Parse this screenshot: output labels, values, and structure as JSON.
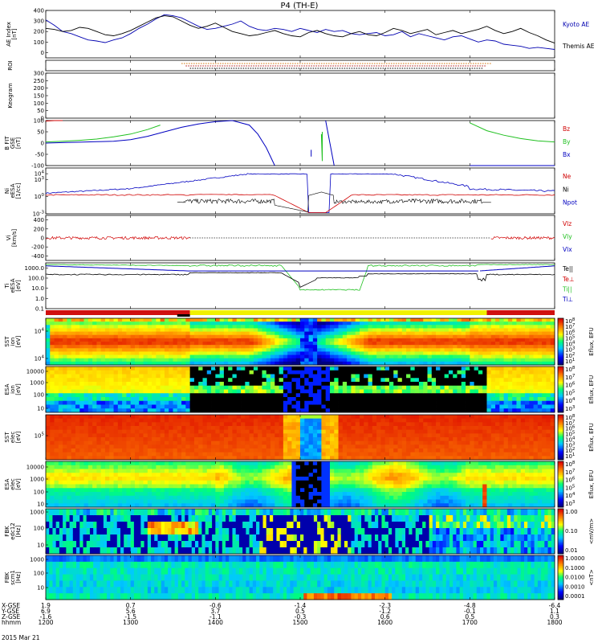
{
  "title": "P4 (TH-E)",
  "date_label": "2015 Mar 21",
  "chart_data": {
    "type": "line",
    "x_range": [
      1200,
      1800
    ],
    "x_ticks": [
      {
        "hhmm": "1200",
        "x_gse": "1.9",
        "y_gse": "6.9",
        "z_gse": "-1.6"
      },
      {
        "hhmm": "1300",
        "x_gse": "0.7",
        "y_gse": "5.6",
        "z_gse": "-1.5"
      },
      {
        "hhmm": "1400",
        "x_gse": "-0.6",
        "y_gse": "3.7",
        "z_gse": "-1.1"
      },
      {
        "hhmm": "1500",
        "x_gse": "-1.4",
        "y_gse": "0.5",
        "z_gse": "-0.3"
      },
      {
        "hhmm": "1600",
        "x_gse": "-2.3",
        "y_gse": "-1.2",
        "z_gse": "0.6"
      },
      {
        "hhmm": "1700",
        "x_gse": "-4.8",
        "y_gse": "-0.1",
        "z_gse": "0.5"
      },
      {
        "hhmm": "1800",
        "x_gse": "-6.4",
        "y_gse": "1.1",
        "z_gse": "0.3"
      }
    ],
    "row_labels": [
      "X-GSE",
      "Y-GSE",
      "Z-GSE",
      "hhmm"
    ],
    "panels": [
      {
        "id": "ae",
        "ylabel": [
          "AE Index",
          "[nT]"
        ],
        "ylim": [
          -50,
          400
        ],
        "ytick_labels": [
          "400",
          "300",
          "200",
          "100",
          "0"
        ],
        "series": [
          {
            "name": "Kyoto AE",
            "color": "#0000b0",
            "x": [
              1200,
              1210,
              1220,
              1230,
              1240,
              1250,
              1260,
              1270,
              1280,
              1290,
              1300,
              1310,
              1320,
              1330,
              1340,
              1350,
              1360,
              1370,
              1380,
              1390,
              1400,
              1410,
              1420,
              1430,
              1440,
              1450,
              1460,
              1470,
              1480,
              1490,
              1500,
              1510,
              1520,
              1530,
              1540,
              1550,
              1560,
              1570,
              1580,
              1590,
              1600,
              1610,
              1620,
              1630,
              1640,
              1650,
              1660,
              1670,
              1680,
              1690,
              1700,
              1710,
              1720,
              1730,
              1740,
              1750,
              1760,
              1770,
              1780,
              1790,
              1800
            ],
            "y": [
              310,
              260,
              200,
              180,
              150,
              120,
              110,
              95,
              120,
              140,
              180,
              230,
              270,
              320,
              360,
              350,
              330,
              290,
              250,
              220,
              230,
              250,
              270,
              300,
              250,
              220,
              210,
              230,
              220,
              200,
              230,
              210,
              190,
              220,
              200,
              210,
              180,
              170,
              180,
              190,
              160,
              170,
              200,
              150,
              180,
              160,
              140,
              120,
              150,
              160,
              130,
              100,
              120,
              110,
              80,
              70,
              60,
              40,
              50,
              40,
              30
            ]
          },
          {
            "name": "Themis AE",
            "color": "#000000",
            "x": [
              1200,
              1210,
              1220,
              1230,
              1240,
              1250,
              1260,
              1270,
              1280,
              1290,
              1300,
              1310,
              1320,
              1330,
              1340,
              1350,
              1360,
              1370,
              1380,
              1390,
              1400,
              1410,
              1420,
              1430,
              1440,
              1450,
              1460,
              1470,
              1480,
              1490,
              1500,
              1510,
              1520,
              1530,
              1540,
              1550,
              1560,
              1570,
              1580,
              1590,
              1600,
              1610,
              1620,
              1630,
              1640,
              1650,
              1660,
              1670,
              1680,
              1690,
              1700,
              1710,
              1720,
              1730,
              1740,
              1750,
              1760,
              1770,
              1780,
              1790,
              1800
            ],
            "y": [
              230,
              220,
              200,
              210,
              240,
              230,
              200,
              170,
              160,
              180,
              210,
              250,
              290,
              330,
              350,
              340,
              300,
              260,
              230,
              250,
              280,
              240,
              200,
              180,
              160,
              170,
              190,
              210,
              180,
              160,
              150,
              190,
              210,
              180,
              160,
              150,
              180,
              200,
              170,
              160,
              190,
              230,
              210,
              180,
              200,
              220,
              170,
              190,
              210,
              180,
              200,
              220,
              250,
              210,
              180,
              200,
              230,
              190,
              160,
              120,
              90
            ]
          }
        ]
      },
      {
        "id": "roi",
        "ylabel": [
          "ROI"
        ],
        "rows": [
          {
            "color": "#d07000",
            "start": 1360,
            "end": 1725
          },
          {
            "color": "#b01010",
            "start": 1365,
            "end": 1720
          },
          {
            "color": "#000000",
            "start": 1370,
            "end": 1715
          }
        ]
      },
      {
        "id": "keogram",
        "ylabel": [
          "Keogram"
        ],
        "ylim": [
          0,
          300
        ],
        "ytick_labels": [
          "300",
          "250",
          "200",
          "150",
          "100",
          "50",
          "0"
        ]
      },
      {
        "id": "bfit",
        "ylabel": [
          "B FIT",
          "GSE",
          "[nT]"
        ],
        "ylim": [
          -100,
          100
        ],
        "ytick_labels": [
          "100",
          "50",
          "0",
          "-50",
          "-100"
        ],
        "series": [
          {
            "name": "Bz",
            "color": "#d00000",
            "x": [
              1200,
              1210,
              1220
            ],
            "y": [
              98,
              100,
              100
            ]
          },
          {
            "name": "By",
            "color": "#20c020",
            "x": [
              1200,
              1220,
              1240,
              1260,
              1280,
              1300,
              1320,
              1335,
              null,
              1525,
              1526,
              1526,
              null,
              1700,
              1720,
              1740,
              1760,
              1780,
              1800
            ],
            "y": [
              5,
              8,
              12,
              18,
              28,
              40,
              60,
              80,
              null,
              40,
              -80,
              50,
              null,
              90,
              55,
              35,
              20,
              10,
              5
            ]
          },
          {
            "name": "Bx",
            "color": "#0000c0",
            "x": [
              1200,
              1220,
              1240,
              1260,
              1280,
              1300,
              1320,
              1340,
              1360,
              1380,
              1400,
              1420,
              1440,
              1450,
              1460,
              1470,
              null,
              1513,
              1513,
              null,
              1530,
              1535,
              1540,
              null,
              1700,
              1720,
              1740,
              1760,
              1780,
              1800
            ],
            "y": [
              0,
              2,
              4,
              6,
              8,
              15,
              30,
              50,
              70,
              85,
              95,
              100,
              80,
              40,
              -20,
              -100,
              null,
              -60,
              -30,
              null,
              100,
              0,
              -100,
              null,
              -100,
              -100,
              -100,
              -100,
              -100,
              -100
            ]
          }
        ]
      },
      {
        "id": "density",
        "ylabel": [
          "Ni",
          "eESA",
          "[1/cc]"
        ],
        "ylim_log": [
          -3,
          5
        ],
        "ytick_labels": [
          "10^4",
          "10^3",
          "10^0",
          "10^-3"
        ],
        "series": [
          {
            "name": "Ne",
            "color": "#d00000"
          },
          {
            "name": "Ni",
            "color": "#000000"
          },
          {
            "name": "Npot",
            "color": "#0000c0"
          }
        ]
      },
      {
        "id": "velocity",
        "ylabel": [
          "Vi",
          "[km/s]"
        ],
        "ylim": [
          -500,
          500
        ],
        "ytick_labels": [
          "400",
          "200",
          "0",
          "-200",
          "-400"
        ],
        "series": [
          {
            "name": "Vlz",
            "color": "#d00000"
          },
          {
            "name": "Vly",
            "color": "#20c020"
          },
          {
            "name": "Vlx",
            "color": "#0000c0"
          }
        ]
      },
      {
        "id": "temperature",
        "ylabel": [
          "Ti",
          "eESA",
          "[eV]"
        ],
        "ylim_log": [
          -1,
          3.5
        ],
        "ytick_labels": [
          "1000.0",
          "100.0",
          "10.0",
          "1.0",
          "0.1"
        ],
        "series": [
          {
            "name": "Te||",
            "color": "#000000"
          },
          {
            "name": "Te⊥",
            "color": "#d00000"
          },
          {
            "name": "Ti||",
            "color": "#20c020"
          },
          {
            "name": "Ti⊥",
            "color": "#0000c0"
          }
        ]
      },
      {
        "id": "sst_i",
        "type": "heatmap",
        "ylabel": [
          "SST",
          "ion",
          "[eV]"
        ],
        "ytick_labels": [
          "10^4",
          "10^4"
        ],
        "colorbar_label": "Eflux, EFU",
        "colorbar_ticks": [
          "10^8",
          "10^7",
          "10^6",
          "10^5",
          "10^4",
          "10^3",
          "10^2",
          "10^1"
        ]
      },
      {
        "id": "esa_i",
        "type": "heatmap",
        "ylabel": [
          "ESA",
          "ion",
          "[eV]"
        ],
        "ytick_labels": [
          "10000",
          "1000",
          "100",
          "10"
        ],
        "colorbar_label": "Eflux, EFU",
        "colorbar_ticks": [
          "10^8",
          "10^7",
          "10^6",
          "10^5",
          "10^4",
          "10^3"
        ]
      },
      {
        "id": "sst_e",
        "type": "heatmap",
        "ylabel": [
          "SST",
          "elec",
          "[eV]"
        ],
        "ytick_labels": [
          "10^5"
        ],
        "colorbar_label": "Eflux, EFU",
        "colorbar_ticks": [
          "10^8",
          "10^7",
          "10^6",
          "10^5",
          "10^4",
          "10^3",
          "10^2",
          "10^1"
        ]
      },
      {
        "id": "esa_e",
        "type": "heatmap",
        "ylabel": [
          "ESA",
          "elec",
          "[eV]"
        ],
        "ytick_labels": [
          "10000",
          "1000",
          "100",
          "10"
        ],
        "colorbar_label": "Eflux, EFU",
        "colorbar_ticks": [
          "10^8",
          "10^7",
          "10^6",
          "10^5",
          "10^4",
          "10^3"
        ]
      },
      {
        "id": "fbk_e",
        "type": "heatmap",
        "ylabel": [
          "FBK",
          "edc12",
          "[Hz]"
        ],
        "ytick_labels": [
          "1000",
          "100",
          "10"
        ],
        "colorbar_label": "<mV/m>",
        "colorbar_ticks": [
          "1.00",
          "0.10",
          "0.01"
        ]
      },
      {
        "id": "fbk_b",
        "type": "heatmap",
        "ylabel": [
          "FBK",
          "scm1",
          "[Hz]"
        ],
        "ytick_labels": [
          "1000",
          "100",
          "10"
        ],
        "colorbar_label": "<nT>",
        "colorbar_ticks": [
          "1.0000",
          "0.1000",
          "0.0100",
          "0.0010",
          "0.0001"
        ]
      }
    ]
  }
}
